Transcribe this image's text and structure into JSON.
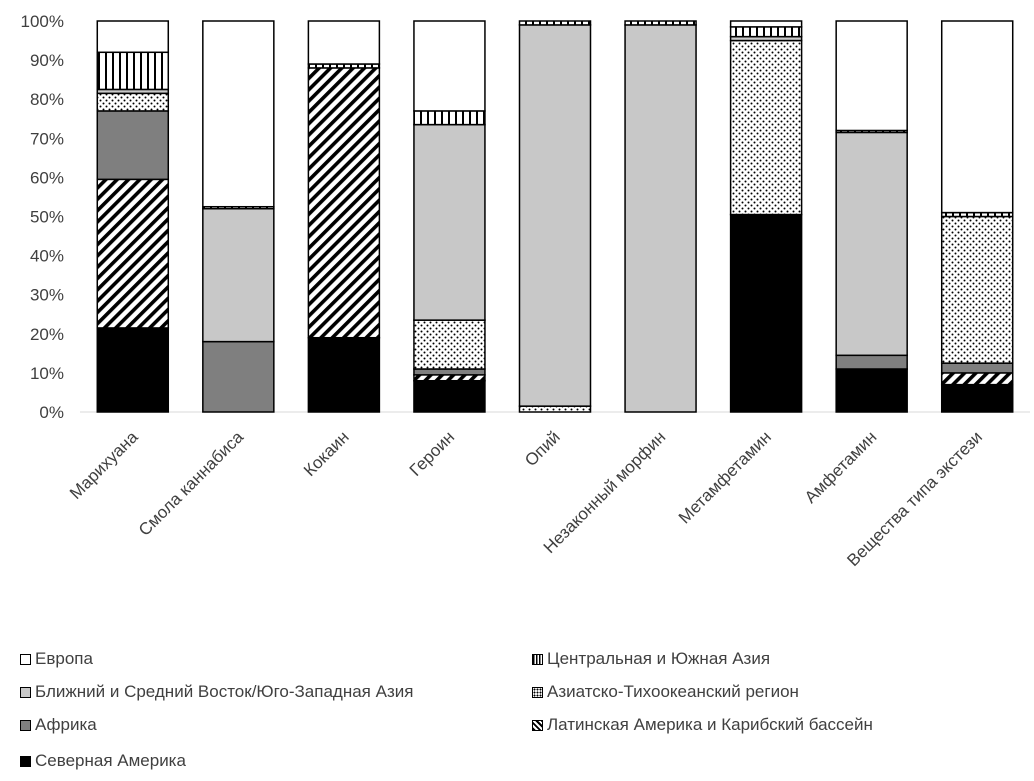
{
  "chart_data": {
    "type": "bar",
    "stacked": "percent",
    "categories": [
      "Марихуана",
      "Смола каннабиса",
      "Кокаин",
      "Героин",
      "Опий",
      "Незаконный морфин",
      "Метамфетамин",
      "Амфетамин",
      "Вещества типа экстези"
    ],
    "yticks": [
      "0%",
      "10%",
      "20%",
      "30%",
      "40%",
      "50%",
      "60%",
      "70%",
      "80%",
      "90%",
      "100%"
    ],
    "ylim": [
      0,
      100
    ],
    "series": [
      {
        "name": "Северная Америка",
        "pattern": "solid-black",
        "values": [
          21.5,
          0,
          19,
          8,
          0,
          0,
          50.5,
          11,
          7
        ]
      },
      {
        "name": "Латинская Америка и Карибский бассейн",
        "pattern": "diagonal-hatch",
        "values": [
          38,
          0,
          69,
          1.5,
          0,
          0,
          0,
          0,
          3
        ]
      },
      {
        "name": "Африка",
        "pattern": "dark-gray",
        "values": [
          17.5,
          18,
          0,
          1.5,
          0,
          0,
          0,
          3.5,
          2.5
        ]
      },
      {
        "name": "Азиатско-Тихоокеанский регион",
        "pattern": "dots",
        "values": [
          4.5,
          0,
          0,
          12.5,
          1.5,
          0,
          44.5,
          0,
          37.5
        ]
      },
      {
        "name": "Ближний и Средний Восток/Юго-Западная Азия",
        "pattern": "light-gray",
        "values": [
          1,
          34,
          0,
          50,
          97.5,
          99,
          1,
          57,
          0
        ]
      },
      {
        "name": "Центральная и Южная Азия",
        "pattern": "vertical-stripes",
        "values": [
          9.5,
          0.5,
          1,
          3.5,
          1,
          1,
          2.5,
          0.5,
          1
        ]
      },
      {
        "name": "Европа",
        "pattern": "white",
        "values": [
          8,
          47.5,
          11,
          23,
          0,
          0,
          1.5,
          28,
          49
        ]
      }
    ],
    "legend_order": [
      "Европа",
      "Центральная и Южная Азия",
      "Ближний и Средний Восток/Юго-Западная Азия",
      "Азиатско-Тихоокеанский регион",
      "Африка",
      "Латинская Америка и Карибский бассейн",
      "Северная Америка"
    ],
    "legend_position": "bottom",
    "grid": false
  }
}
